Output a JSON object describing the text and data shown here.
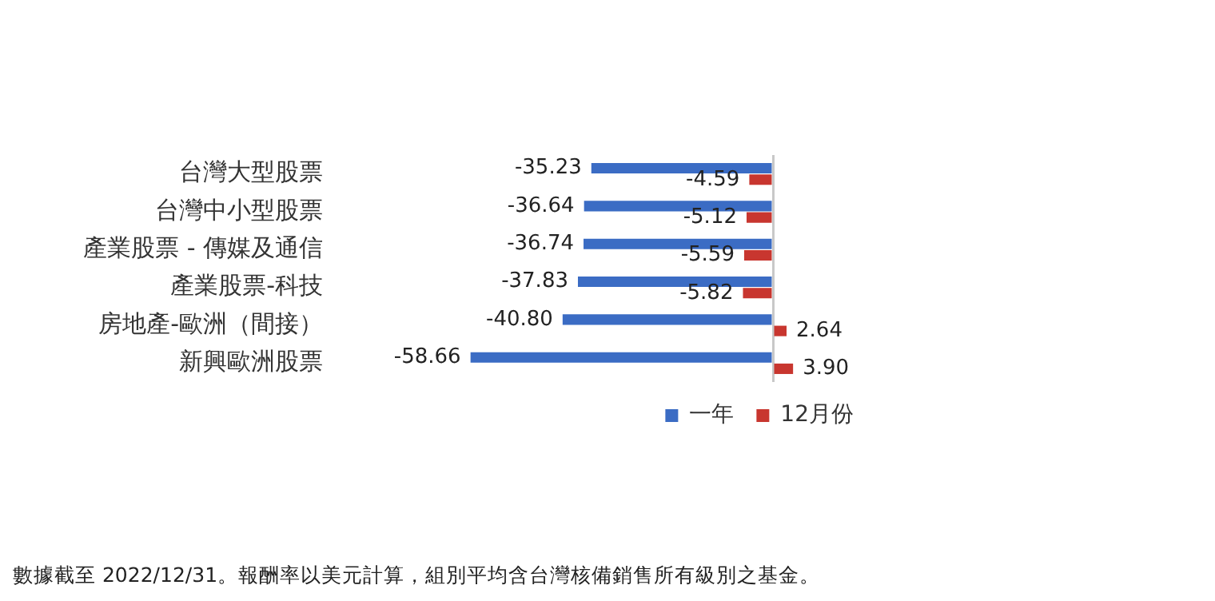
{
  "chart_data": {
    "type": "bar",
    "orientation": "horizontal",
    "categories": [
      "台灣大型股票",
      "台灣中小型股票",
      "產業股票 - 傳媒及通信",
      "產業股票-科技",
      "房地產-歐洲（間接）",
      "新興歐洲股票"
    ],
    "series": [
      {
        "name": "一年",
        "color": "#3b6cc4",
        "values": [
          -35.23,
          -36.64,
          -36.74,
          -37.83,
          -40.8,
          -58.66
        ],
        "value_labels": [
          "-35.23",
          "-36.64",
          "-36.74",
          "-37.83",
          "-40.80",
          "-58.66"
        ]
      },
      {
        "name": "12月份",
        "color": "#c8362f",
        "values": [
          -4.59,
          -5.12,
          -5.59,
          -5.82,
          2.64,
          3.9
        ],
        "value_labels": [
          "-4.59",
          "-5.12",
          "-5.59",
          "-5.82",
          "2.64",
          "3.90"
        ]
      }
    ],
    "legend": "bottom right",
    "grid": false,
    "annotations": [
      "數據截至 2022/12/31。報酬率以美元計算，組別平均含台灣核備銷售所有級別之基金。"
    ]
  }
}
